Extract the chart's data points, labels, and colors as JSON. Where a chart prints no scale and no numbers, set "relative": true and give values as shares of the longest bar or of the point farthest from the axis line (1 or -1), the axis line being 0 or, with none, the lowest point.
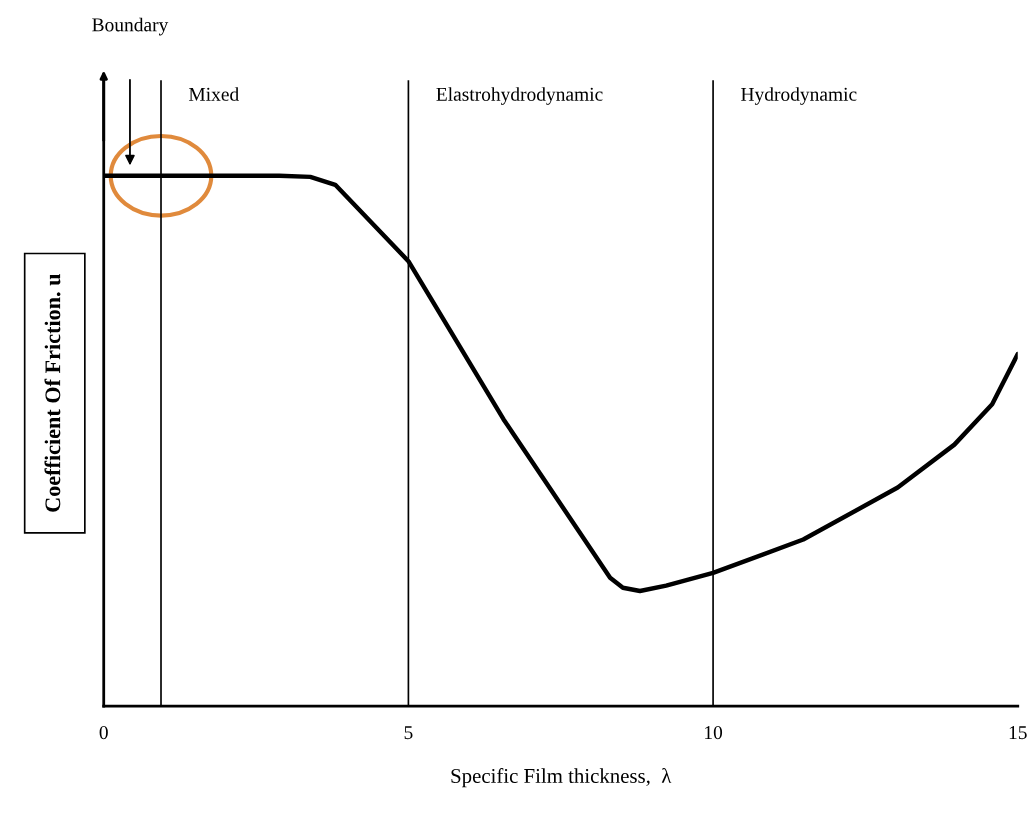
{
  "chart_data": {
    "type": "line",
    "relative": true,
    "xlabel": "Specific Film thickness,  λ",
    "ylabel": "Coefficient Of Friction. u",
    "x": [
      0,
      2.88,
      3.39,
      3.8,
      5,
      6.56,
      8.31,
      8.52,
      8.8,
      9.23,
      10,
      11.48,
      13.03,
      13.96,
      14.58,
      15
    ],
    "series": [
      {
        "color": "#000000",
        "values": [
          1,
          1,
          0.998,
          0.983,
          0.839,
          0.541,
          0.242,
          0.223,
          0.217,
          0.227,
          0.251,
          0.314,
          0.412,
          0.493,
          0.569,
          0.664
        ]
      }
    ],
    "xlim": [
      0,
      15
    ],
    "xticks": [
      0,
      5,
      10,
      15
    ],
    "ref_lines": [
      {
        "axis": "x",
        "value": 0.94,
        "label": "Mixed",
        "color": "#000000"
      },
      {
        "axis": "x",
        "value": 5,
        "label": "Elastrohydrodynamic",
        "color": "#000000"
      },
      {
        "axis": "x",
        "value": 10,
        "label": "Hydrodynamic",
        "color": "#000000"
      }
    ],
    "annotations": [
      "Boundary"
    ],
    "grid": false,
    "legend": false,
    "marker": "none",
    "line_style": "solid"
  }
}
